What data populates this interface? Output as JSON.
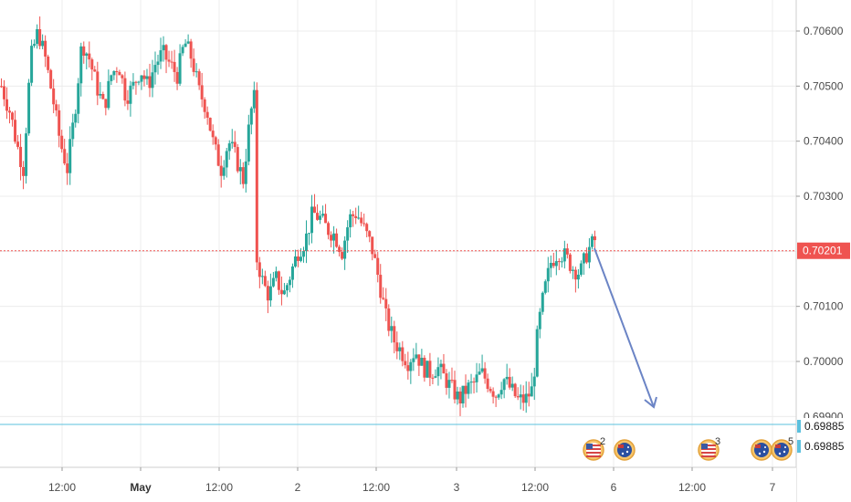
{
  "chart_data": {
    "type": "candlestick",
    "instrument_hint": "AUDUSD",
    "y_axis": {
      "ticks": [
        "0.70600",
        "0.70500",
        "0.70400",
        "0.70300",
        "0.70100",
        "0.70000"
      ],
      "tick_values": [
        0.706,
        0.705,
        0.704,
        0.703,
        0.701,
        0.7
      ],
      "range": [
        0.698,
        0.707
      ]
    },
    "x_axis": {
      "ticks": [
        {
          "label": "12:00",
          "bold": false,
          "t": 0
        },
        {
          "label": "May",
          "bold": true,
          "t": 1
        },
        {
          "label": "12:00",
          "bold": false,
          "t": 2
        },
        {
          "label": "2",
          "bold": false,
          "t": 3
        },
        {
          "label": "12:00",
          "bold": false,
          "t": 4
        },
        {
          "label": "3",
          "bold": false,
          "t": 5
        },
        {
          "label": "12:00",
          "bold": false,
          "t": 6
        },
        {
          "label": "6",
          "bold": false,
          "t": 7
        },
        {
          "label": "12:00",
          "bold": false,
          "t": 8
        },
        {
          "label": "7",
          "bold": false,
          "t": 9
        }
      ]
    },
    "current_price": {
      "value": 0.70201,
      "label": "0.70201",
      "color": "#ef5350"
    },
    "horizontal_levels": [
      {
        "value": 0.69885,
        "label": "0.69885",
        "color": "#5bc0de"
      },
      {
        "value": 0.69885,
        "label": "0.69885",
        "color": "#5bc0de"
      }
    ],
    "bull_color": "#26a69a",
    "bear_color": "#ef5350",
    "price_path": [
      [
        0.0,
        0.705
      ],
      [
        0.5,
        0.7045
      ],
      [
        0.8,
        0.704
      ],
      [
        1.2,
        0.7035
      ],
      [
        1.6,
        0.7055
      ],
      [
        2.0,
        0.706
      ],
      [
        2.4,
        0.7055
      ],
      [
        2.8,
        0.7048
      ],
      [
        3.2,
        0.704
      ],
      [
        3.6,
        0.7035
      ],
      [
        4.0,
        0.7045
      ],
      [
        4.4,
        0.7058
      ],
      [
        4.8,
        0.7055
      ],
      [
        5.2,
        0.705
      ],
      [
        5.6,
        0.7046
      ],
      [
        6.0,
        0.7052
      ],
      [
        6.4,
        0.7054
      ],
      [
        6.8,
        0.7048
      ],
      [
        7.2,
        0.705
      ],
      [
        7.6,
        0.7053
      ],
      [
        8.0,
        0.705
      ],
      [
        8.4,
        0.7054
      ],
      [
        8.8,
        0.7056
      ],
      [
        9.2,
        0.7054
      ],
      [
        9.6,
        0.7052
      ],
      [
        10.0,
        0.7058
      ],
      [
        10.4,
        0.7055
      ],
      [
        10.8,
        0.7049
      ],
      [
        11.2,
        0.7046
      ],
      [
        11.6,
        0.7039
      ],
      [
        12.0,
        0.7035
      ],
      [
        12.4,
        0.704
      ],
      [
        12.8,
        0.7037
      ],
      [
        13.2,
        0.7033
      ],
      [
        13.6,
        0.7045
      ],
      [
        13.9,
        0.7049
      ],
      [
        14.0,
        0.7018
      ],
      [
        14.3,
        0.7014
      ],
      [
        14.6,
        0.7012
      ],
      [
        15.0,
        0.7015
      ],
      [
        15.4,
        0.7012
      ],
      [
        15.8,
        0.7016
      ],
      [
        16.2,
        0.702
      ],
      [
        16.6,
        0.7022
      ],
      [
        17.0,
        0.7027
      ],
      [
        17.4,
        0.7026
      ],
      [
        17.8,
        0.7024
      ],
      [
        18.2,
        0.7023
      ],
      [
        18.6,
        0.702
      ],
      [
        19.0,
        0.7026
      ],
      [
        19.4,
        0.7027
      ],
      [
        19.8,
        0.7024
      ],
      [
        20.2,
        0.7021
      ],
      [
        20.6,
        0.7015
      ],
      [
        21.0,
        0.7008
      ],
      [
        21.4,
        0.7004
      ],
      [
        21.8,
        0.7002
      ],
      [
        22.2,
        0.7
      ],
      [
        22.6,
        0.7002
      ],
      [
        23.0,
        0.6999
      ],
      [
        23.4,
        0.6998
      ],
      [
        23.8,
        0.6999
      ],
      [
        24.2,
        0.6997
      ],
      [
        24.6,
        0.6995
      ],
      [
        25.0,
        0.6993
      ],
      [
        25.4,
        0.6995
      ],
      [
        25.8,
        0.6996
      ],
      [
        26.2,
        0.6998
      ],
      [
        26.6,
        0.6996
      ],
      [
        27.0,
        0.6994
      ],
      [
        27.4,
        0.6997
      ],
      [
        27.8,
        0.6995
      ],
      [
        28.2,
        0.6993
      ],
      [
        28.6,
        0.6993
      ],
      [
        29.0,
        0.6995
      ],
      [
        29.3,
        0.7006
      ],
      [
        29.6,
        0.7012
      ],
      [
        30.0,
        0.7018
      ],
      [
        30.4,
        0.702
      ],
      [
        30.8,
        0.7019
      ],
      [
        31.2,
        0.7017
      ],
      [
        31.6,
        0.7016
      ],
      [
        32.0,
        0.702
      ],
      [
        32.4,
        0.7022
      ]
    ],
    "arrow": {
      "from": [
        32.5,
        0.702
      ],
      "to": [
        35.6,
        0.69915
      ],
      "color": "#6b84c5"
    },
    "events": [
      {
        "kind": "us-flag",
        "count": "2",
        "t": 31.6
      },
      {
        "kind": "au-flag",
        "count": "",
        "t": 33.5
      },
      {
        "kind": "us-flag",
        "count": "3",
        "t": 38.3
      },
      {
        "kind": "au-flag",
        "count": "",
        "t": 41.3
      },
      {
        "kind": "au-flag",
        "count": "5",
        "t": 42.4
      }
    ]
  }
}
